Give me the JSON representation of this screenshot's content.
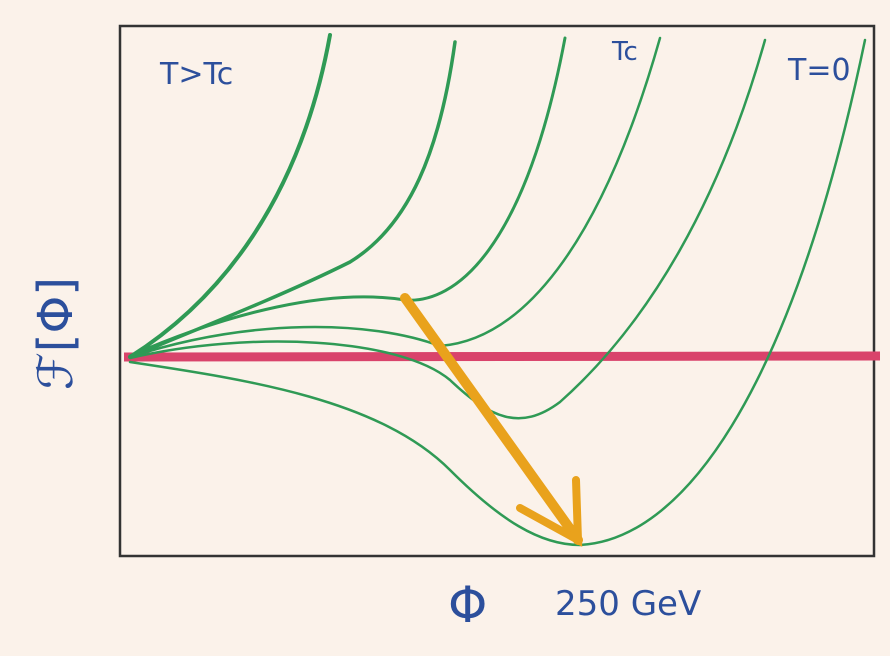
{
  "curve_labels": {
    "high": "T>Tc",
    "critical": "Tc",
    "zero": "T=0"
  },
  "y_axis_label": "ℱ[Φ]",
  "x_axis_label": "Φ",
  "x_marker_label": "250 GeV"
}
